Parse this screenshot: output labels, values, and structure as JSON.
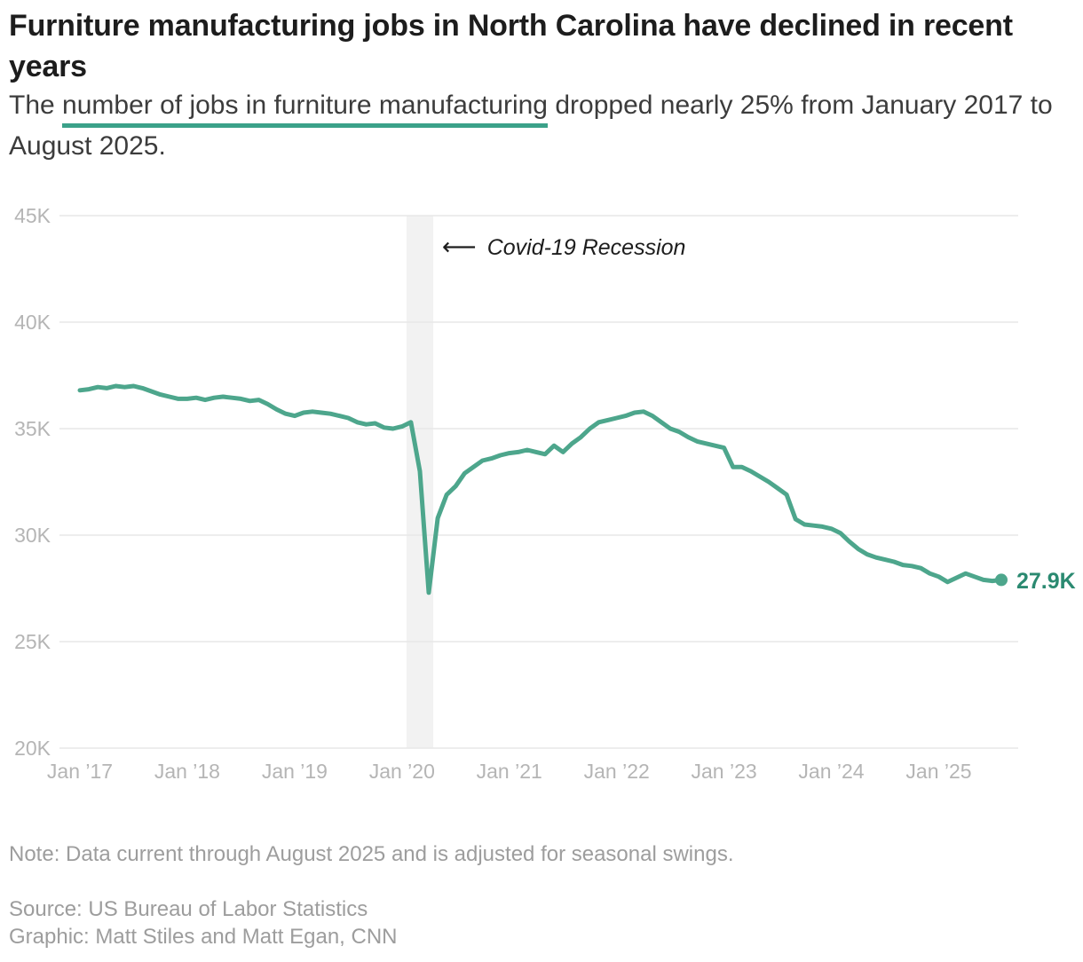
{
  "header": {
    "title": "Furniture manufacturing jobs in North Carolina have declined in recent years",
    "subtitle_prefix": "The ",
    "subtitle_highlight": "number of jobs in furniture manufacturing",
    "subtitle_rest_line1": " dropped nearly 25% from January 2017 to",
    "subtitle_rest_line2": "August 2025."
  },
  "chart_data": {
    "type": "line",
    "title": "Furniture manufacturing jobs in North Carolina have declined in recent years",
    "frequency": "monthly",
    "x_start": "Jan 2017",
    "x_end": "Aug 2025",
    "unit": "thousands of jobs (seasonally adjusted)",
    "ylim": [
      20,
      45
    ],
    "grid": "horizontal",
    "legend": "none",
    "y_ticks": [
      45,
      40,
      35,
      30,
      25,
      20
    ],
    "y_tick_labels": [
      "45K",
      "40K",
      "35K",
      "30K",
      "25K",
      "20K"
    ],
    "x_tick_labels": [
      "Jan ’17",
      "Jan ’18",
      "Jan ’19",
      "Jan ’20",
      "Jan ’21",
      "Jan ’22",
      "Jan ’23",
      "Jan ’24",
      "Jan ’25"
    ],
    "series": [
      {
        "name": "Furniture manufacturing jobs in North Carolina",
        "values": [
          36.8,
          36.85,
          36.95,
          36.9,
          37.0,
          36.95,
          37.0,
          36.9,
          36.75,
          36.6,
          36.5,
          36.4,
          36.4,
          36.45,
          36.35,
          36.45,
          36.5,
          36.45,
          36.4,
          36.3,
          36.35,
          36.15,
          35.9,
          35.7,
          35.6,
          35.75,
          35.8,
          35.75,
          35.7,
          35.6,
          35.5,
          35.3,
          35.2,
          35.25,
          35.05,
          35.0,
          35.1,
          35.3,
          33.0,
          27.3,
          30.8,
          31.9,
          32.3,
          32.9,
          33.2,
          33.5,
          33.6,
          33.75,
          33.85,
          33.9,
          34.0,
          33.9,
          33.8,
          34.2,
          33.9,
          34.3,
          34.6,
          35.0,
          35.3,
          35.4,
          35.5,
          35.6,
          35.75,
          35.8,
          35.6,
          35.3,
          35.0,
          34.85,
          34.6,
          34.4,
          34.3,
          34.2,
          34.1,
          33.2,
          33.2,
          33.0,
          32.75,
          32.5,
          32.2,
          31.9,
          30.75,
          30.5,
          30.45,
          30.4,
          30.3,
          30.1,
          29.7,
          29.35,
          29.1,
          28.95,
          28.85,
          28.75,
          28.6,
          28.55,
          28.45,
          28.2,
          28.05,
          27.8,
          28.0,
          28.2,
          28.05,
          27.9,
          27.85,
          27.9
        ]
      }
    ],
    "recession_band": {
      "label": "Covid-19 Recession",
      "start": "Feb 2020",
      "end": "Apr 2020",
      "start_index": 37,
      "end_index": 39
    },
    "annotation": {
      "arrow": "⟵",
      "text": "Covid-19 Recession"
    },
    "end_point": {
      "date": "Aug 2025",
      "value": 27.9,
      "label": "27.9K"
    }
  },
  "footer": {
    "note": "Note: Data current through August 2025 and is adjusted for seasonal swings.",
    "source": "Source: US Bureau of Labor Statistics",
    "credit": "Graphic: Matt Stiles and Matt Egan, CNN"
  },
  "colors": {
    "line": "#4DA68C",
    "end_dot": "#4DA68C",
    "end_label": "#2B8A71",
    "underline": "#3BA189",
    "recession_band": "#F2F2F2",
    "gridline": "#E7E7E7",
    "axis_text": "#B5B5B5",
    "title_text": "#1D1D1D",
    "subtitle_text": "#3C3C3C",
    "annotation_text": "#1D1D1D",
    "footer_text": "#9D9D9D"
  }
}
